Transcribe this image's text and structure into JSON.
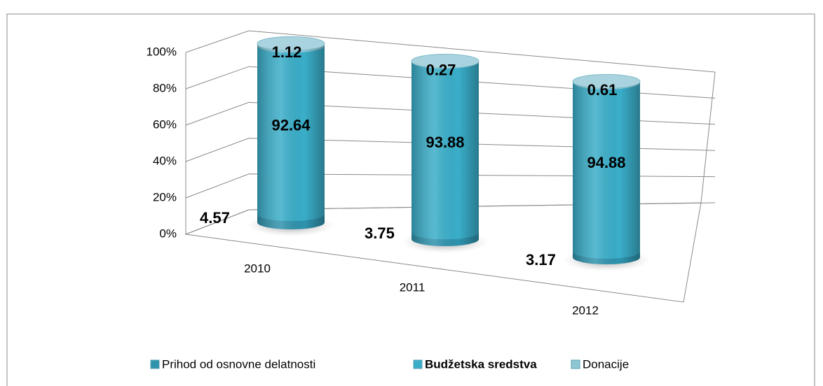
{
  "chart_data": {
    "type": "cylinder_stacked",
    "categories": [
      "2010",
      "2011",
      "2012"
    ],
    "series": [
      {
        "name": "Prihod od osnovne delatnosti",
        "color": "#2f93ad",
        "label_color": "#000000",
        "values": [
          4.57,
          3.75,
          3.17
        ]
      },
      {
        "name": "Budžetska sredstva",
        "color": "#3aaec9",
        "label_color": "#ee1c1c",
        "values": [
          92.64,
          93.88,
          94.88
        ]
      },
      {
        "name": "Donacije",
        "color": "#8ec6d4",
        "label_color": "#000000",
        "values": [
          1.12,
          0.27,
          0.61
        ]
      }
    ],
    "ylim": [
      0,
      100
    ],
    "yticks": [
      {
        "value": 0,
        "label": "0%"
      },
      {
        "value": 20,
        "label": "20%"
      },
      {
        "value": 40,
        "label": "40%"
      },
      {
        "value": 60,
        "label": "60%"
      },
      {
        "value": 80,
        "label": "80%"
      },
      {
        "value": 100,
        "label": "100%"
      }
    ],
    "grid": true,
    "legend": "bottom"
  }
}
